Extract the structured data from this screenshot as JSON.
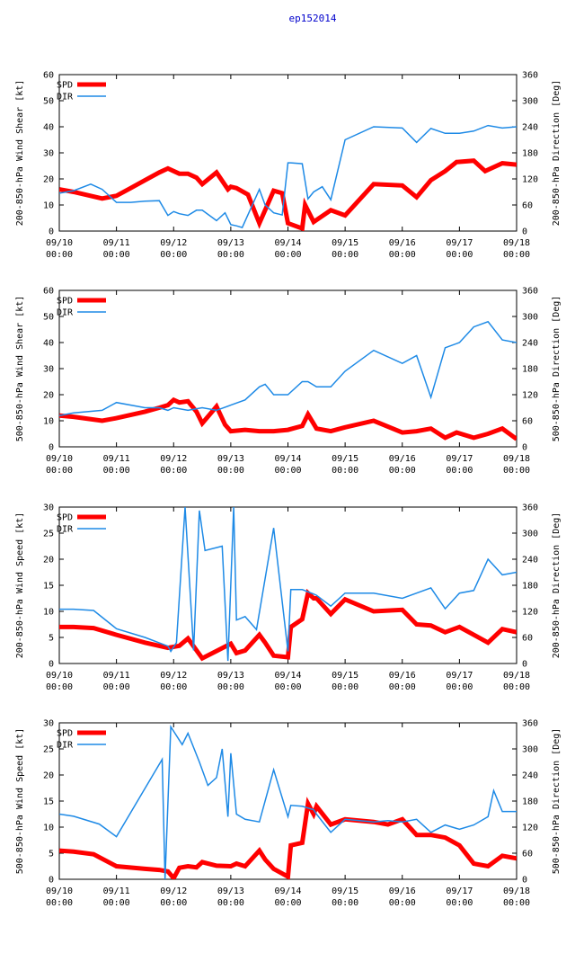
{
  "figure_title": "ep152014",
  "chart_data": [
    {
      "type": "line",
      "ylabel": "200-850-hPa Wind Shear [kt]",
      "y2label": "200-850-hPa Direction [Deg]",
      "ylim": [
        0,
        60
      ],
      "y_ticks": [
        "0",
        "10",
        "20",
        "30",
        "40",
        "50",
        "60"
      ],
      "y2lim": [
        0,
        360
      ],
      "y2_ticks": [
        "0",
        "60",
        "120",
        "180",
        "240",
        "300",
        "360"
      ],
      "xlim": [
        0,
        8
      ],
      "x_ticks": [
        {
          "date": "09/10",
          "time": "00:00"
        },
        {
          "date": "09/11",
          "time": "00:00"
        },
        {
          "date": "09/12",
          "time": "00:00"
        },
        {
          "date": "09/13",
          "time": "00:00"
        },
        {
          "date": "09/14",
          "time": "00:00"
        },
        {
          "date": "09/15",
          "time": "00:00"
        },
        {
          "date": "09/16",
          "time": "00:00"
        },
        {
          "date": "09/17",
          "time": "00:00"
        },
        {
          "date": "09/18",
          "time": "00:00"
        }
      ],
      "legend": [
        "SPD",
        "DIR"
      ],
      "series": [
        {
          "name": "SPD",
          "axis": "left",
          "color": "#ff0000",
          "x": [
            0.0,
            0.25,
            0.75,
            1.0,
            1.25,
            1.5,
            1.75,
            1.9,
            2.0,
            2.1,
            2.25,
            2.4,
            2.5,
            2.75,
            2.95,
            3.0,
            3.1,
            3.3,
            3.5,
            3.75,
            3.9,
            4.0,
            4.25,
            4.3,
            4.45,
            4.75,
            5.0,
            5.5,
            6.0,
            6.25,
            6.5,
            6.75,
            6.95,
            7.25,
            7.45,
            7.75,
            8.0
          ],
          "values": [
            16,
            15,
            12.5,
            13.5,
            16.5,
            19.5,
            22.5,
            24,
            23,
            22,
            22,
            20.5,
            18,
            22.5,
            16,
            17,
            16.5,
            14,
            3,
            15.5,
            14.5,
            3,
            1,
            10,
            3.5,
            8,
            6,
            18,
            17.5,
            13,
            19.5,
            23,
            26.5,
            27,
            23,
            26,
            25.5
          ]
        },
        {
          "name": "DIR",
          "axis": "right",
          "color": "#1e8ae6",
          "x": [
            0.0,
            0.25,
            0.55,
            0.75,
            1.0,
            1.25,
            1.5,
            1.75,
            1.9,
            2.0,
            2.1,
            2.25,
            2.4,
            2.5,
            2.75,
            2.9,
            3.0,
            3.1,
            3.2,
            3.5,
            3.6,
            3.75,
            3.9,
            4.0,
            4.05,
            4.25,
            4.35,
            4.45,
            4.6,
            4.75,
            5.0,
            5.5,
            6.0,
            6.25,
            6.5,
            6.75,
            7.0,
            7.25,
            7.5,
            7.75,
            8.0
          ],
          "values": [
            87,
            93,
            108,
            96,
            66,
            66,
            69,
            70,
            36,
            45,
            40,
            36,
            48,
            48,
            24,
            42,
            15,
            12,
            8,
            96,
            60,
            42,
            37,
            157,
            157,
            155,
            74,
            90,
            102,
            72,
            210,
            240,
            237,
            204,
            236,
            225,
            225,
            230,
            243,
            237,
            240
          ]
        }
      ]
    },
    {
      "type": "line",
      "ylabel": "500-850-hPa Wind Shear [kt]",
      "y2label": "500-850-hPa Direction [Deg]",
      "ylim": [
        0,
        60
      ],
      "y_ticks": [
        "0",
        "10",
        "20",
        "30",
        "40",
        "50",
        "60"
      ],
      "y2lim": [
        0,
        360
      ],
      "y2_ticks": [
        "0",
        "60",
        "120",
        "180",
        "240",
        "300",
        "360"
      ],
      "xlim": [
        0,
        8
      ],
      "x_ticks": [
        {
          "date": "09/10",
          "time": "00:00"
        },
        {
          "date": "09/11",
          "time": "00:00"
        },
        {
          "date": "09/12",
          "time": "00:00"
        },
        {
          "date": "09/13",
          "time": "00:00"
        },
        {
          "date": "09/14",
          "time": "00:00"
        },
        {
          "date": "09/15",
          "time": "00:00"
        },
        {
          "date": "09/16",
          "time": "00:00"
        },
        {
          "date": "09/17",
          "time": "00:00"
        },
        {
          "date": "09/18",
          "time": "00:00"
        }
      ],
      "legend": [
        "SPD",
        "DIR"
      ],
      "series": [
        {
          "name": "SPD",
          "axis": "left",
          "color": "#ff0000",
          "x": [
            0.0,
            0.25,
            0.75,
            1.0,
            1.5,
            1.75,
            1.9,
            2.0,
            2.1,
            2.25,
            2.4,
            2.5,
            2.75,
            2.9,
            3.0,
            3.25,
            3.5,
            3.75,
            4.0,
            4.25,
            4.35,
            4.5,
            4.75,
            5.0,
            5.5,
            6.0,
            6.25,
            6.5,
            6.75,
            6.95,
            7.25,
            7.5,
            7.75,
            8.0
          ],
          "values": [
            12,
            11.5,
            10,
            11,
            13.5,
            15,
            16,
            18,
            17,
            17.5,
            13.5,
            9,
            15.5,
            8.5,
            6,
            6.5,
            6,
            6,
            6.5,
            8,
            12.5,
            7,
            6,
            7.5,
            10,
            5.5,
            6,
            7,
            3.5,
            5.5,
            3.5,
            5,
            7,
            3
          ]
        },
        {
          "name": "DIR",
          "axis": "right",
          "color": "#1e8ae6",
          "x": [
            0.0,
            0.25,
            0.75,
            1.0,
            1.5,
            1.75,
            1.9,
            2.0,
            2.25,
            2.5,
            2.75,
            3.0,
            3.25,
            3.5,
            3.6,
            3.75,
            4.0,
            4.25,
            4.35,
            4.5,
            4.75,
            5.0,
            5.5,
            6.0,
            6.25,
            6.5,
            6.75,
            7.0,
            7.25,
            7.5,
            7.75,
            8.0
          ],
          "values": [
            72,
            78,
            84,
            102,
            90,
            90,
            84,
            90,
            84,
            90,
            84,
            96,
            108,
            138,
            144,
            120,
            120,
            150,
            150,
            138,
            138,
            174,
            222,
            192,
            210,
            114,
            228,
            240,
            276,
            288,
            246,
            240
          ]
        }
      ]
    },
    {
      "type": "line",
      "ylabel": "200-850-hPa Wind Speed [kt]",
      "y2label": "200-850-hPa Direction [Deg]",
      "ylim": [
        0,
        30
      ],
      "y_ticks": [
        "0",
        "5",
        "10",
        "15",
        "20",
        "25",
        "30"
      ],
      "y2lim": [
        0,
        360
      ],
      "y2_ticks": [
        "0",
        "60",
        "120",
        "180",
        "240",
        "300",
        "360"
      ],
      "xlim": [
        0,
        8
      ],
      "x_ticks": [
        {
          "date": "09/10",
          "time": "00:00"
        },
        {
          "date": "09/11",
          "time": "00:00"
        },
        {
          "date": "09/12",
          "time": "00:00"
        },
        {
          "date": "09/13",
          "time": "00:00"
        },
        {
          "date": "09/14",
          "time": "00:00"
        },
        {
          "date": "09/15",
          "time": "00:00"
        },
        {
          "date": "09/16",
          "time": "00:00"
        },
        {
          "date": "09/17",
          "time": "00:00"
        },
        {
          "date": "09/18",
          "time": "00:00"
        }
      ],
      "legend": [
        "SPD",
        "DIR"
      ],
      "series": [
        {
          "name": "SPD",
          "axis": "left",
          "color": "#ff0000",
          "x": [
            0.0,
            0.25,
            0.6,
            1.0,
            1.5,
            1.9,
            2.0,
            2.1,
            2.25,
            2.5,
            2.75,
            3.0,
            3.1,
            3.25,
            3.5,
            3.6,
            3.75,
            4.0,
            4.05,
            4.25,
            4.35,
            4.45,
            4.5,
            4.75,
            5.0,
            5.5,
            6.0,
            6.25,
            6.5,
            6.75,
            7.0,
            7.25,
            7.5,
            7.75,
            8.0
          ],
          "values": [
            7,
            7,
            6.8,
            5.5,
            4,
            3,
            3.2,
            3.4,
            4.8,
            1,
            2.4,
            3.8,
            2,
            2.5,
            5.5,
            4,
            1.5,
            1.2,
            7,
            8.5,
            13.5,
            12.5,
            12.5,
            9.5,
            12.3,
            10,
            10.3,
            7.5,
            7.3,
            6,
            7,
            5.5,
            4,
            6.6,
            6
          ]
        },
        {
          "name": "DIR",
          "axis": "right",
          "color": "#1e8ae6",
          "x": [
            0.0,
            0.25,
            0.6,
            1.0,
            1.5,
            1.9,
            1.95,
            2.05,
            2.2,
            2.35,
            2.45,
            2.55,
            2.85,
            2.95,
            3.05,
            3.1,
            3.25,
            3.45,
            3.75,
            4.0,
            4.05,
            4.25,
            4.45,
            4.5,
            4.75,
            5.0,
            5.5,
            6.0,
            6.25,
            6.5,
            6.75,
            7.0,
            7.25,
            7.5,
            7.75,
            8.0
          ],
          "values": [
            125,
            125,
            122,
            80,
            60,
            40,
            28,
            48,
            360,
            30,
            352,
            260,
            270,
            6,
            360,
            100,
            108,
            78,
            312,
            28,
            170,
            170,
            160,
            157,
            132,
            162,
            162,
            150,
            162,
            174,
            126,
            162,
            168,
            240,
            204,
            210
          ]
        }
      ]
    },
    {
      "type": "line",
      "ylabel": "500-850-hPa Wind Speed [kt]",
      "y2label": "500-850-hPa Direction [Deg]",
      "ylim": [
        0,
        30
      ],
      "y_ticks": [
        "0",
        "5",
        "10",
        "15",
        "20",
        "25",
        "30"
      ],
      "y2lim": [
        0,
        360
      ],
      "y2_ticks": [
        "0",
        "60",
        "120",
        "180",
        "240",
        "300",
        "360"
      ],
      "xlim": [
        0,
        8
      ],
      "x_ticks": [
        {
          "date": "09/10",
          "time": "00:00"
        },
        {
          "date": "09/11",
          "time": "00:00"
        },
        {
          "date": "09/12",
          "time": "00:00"
        },
        {
          "date": "09/13",
          "time": "00:00"
        },
        {
          "date": "09/14",
          "time": "00:00"
        },
        {
          "date": "09/15",
          "time": "00:00"
        },
        {
          "date": "09/16",
          "time": "00:00"
        },
        {
          "date": "09/17",
          "time": "00:00"
        },
        {
          "date": "09/18",
          "time": "00:00"
        }
      ],
      "legend": [
        "SPD",
        "DIR"
      ],
      "series": [
        {
          "name": "SPD",
          "axis": "left",
          "color": "#ff0000",
          "x": [
            0.0,
            0.25,
            0.6,
            1.0,
            1.5,
            1.75,
            1.9,
            2.0,
            2.1,
            2.25,
            2.4,
            2.5,
            2.75,
            3.0,
            3.1,
            3.25,
            3.5,
            3.6,
            3.75,
            4.0,
            4.05,
            4.25,
            4.35,
            4.45,
            4.5,
            4.75,
            5.0,
            5.5,
            5.75,
            6.0,
            6.25,
            6.5,
            6.75,
            7.0,
            7.25,
            7.5,
            7.75,
            8.0
          ],
          "values": [
            5.5,
            5.3,
            4.8,
            2.5,
            2,
            1.8,
            1.5,
            0.2,
            2.2,
            2.5,
            2.3,
            3.3,
            2.6,
            2.5,
            3,
            2.5,
            5.5,
            3.8,
            2,
            0.5,
            6.5,
            7,
            14.5,
            12.5,
            14,
            10.5,
            11.5,
            11,
            10.5,
            11.5,
            8.5,
            8.5,
            8,
            6.5,
            3,
            2.5,
            4.5,
            4
          ]
        },
        {
          "name": "DIR",
          "axis": "right",
          "color": "#1e8ae6",
          "x": [
            0.0,
            0.25,
            0.7,
            1.0,
            1.8,
            1.85,
            1.95,
            2.15,
            2.25,
            2.45,
            2.6,
            2.75,
            2.85,
            2.95,
            3.0,
            3.1,
            3.25,
            3.5,
            3.75,
            4.0,
            4.05,
            4.25,
            4.45,
            4.5,
            4.75,
            5.0,
            5.5,
            5.75,
            6.0,
            6.25,
            6.5,
            6.75,
            7.0,
            7.25,
            7.5,
            7.6,
            7.75,
            8.0
          ],
          "values": [
            150,
            145,
            127,
            98,
            276,
            0,
            351,
            310,
            336,
            270,
            216,
            234,
            300,
            144,
            290,
            150,
            138,
            132,
            252,
            144,
            170,
            168,
            160,
            150,
            108,
            138,
            132,
            135,
            132,
            138,
            108,
            125,
            115,
            125,
            144,
            204,
            156,
            156
          ]
        }
      ]
    }
  ]
}
